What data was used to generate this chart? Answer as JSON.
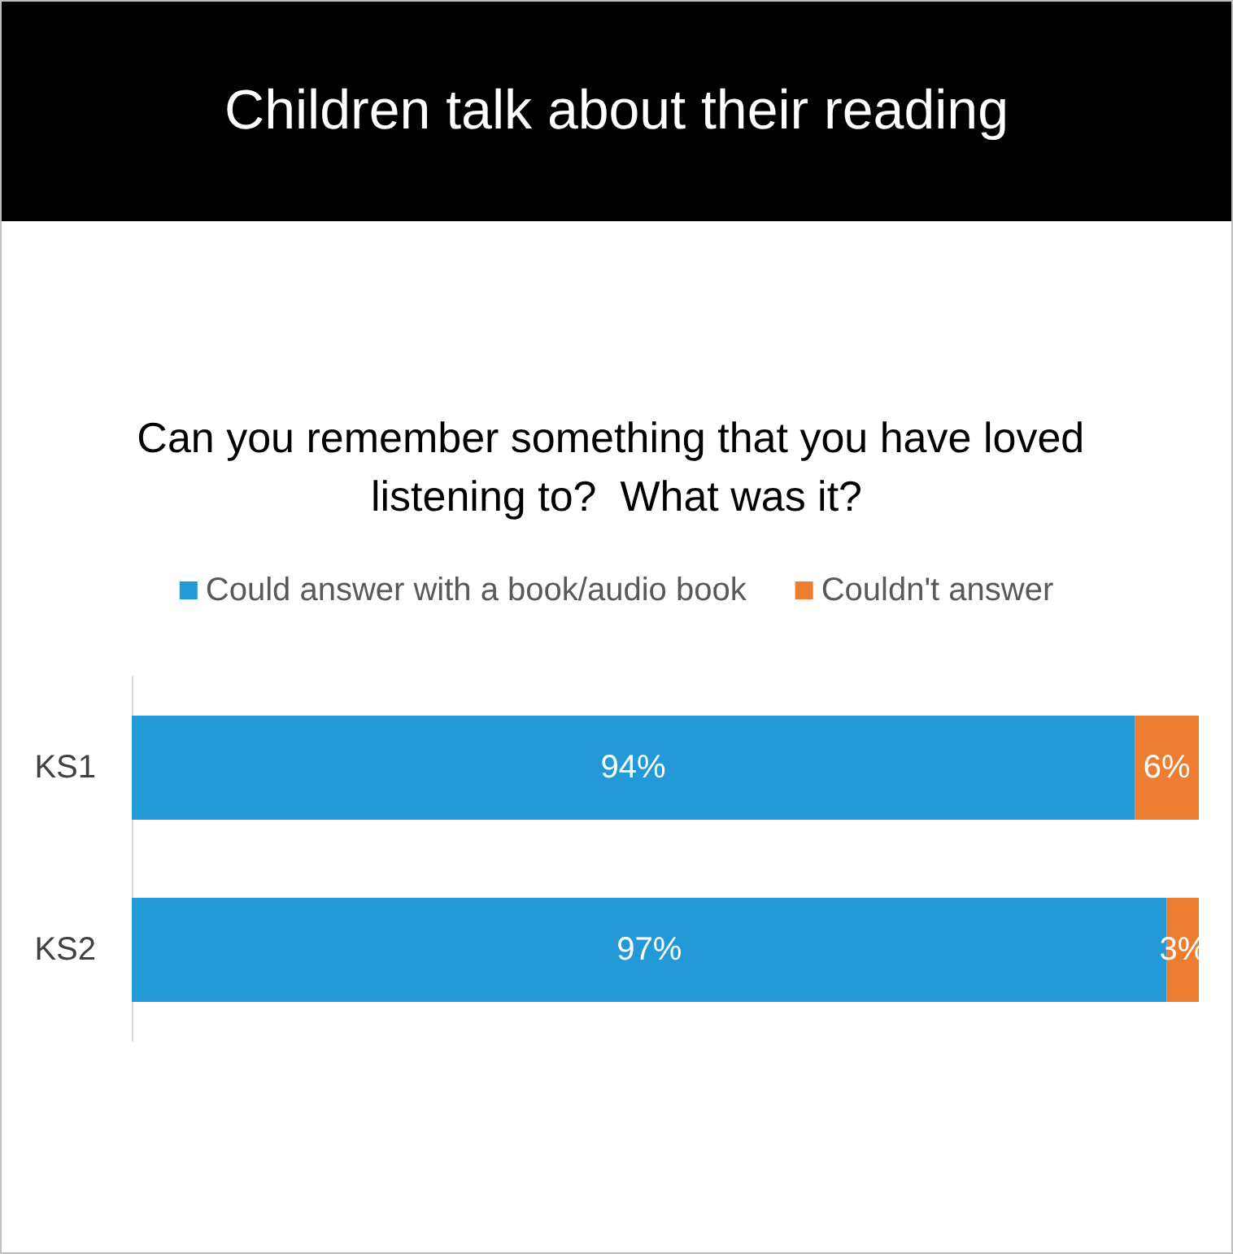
{
  "chart_data": {
    "type": "bar",
    "orientation": "horizontal",
    "stacked": true,
    "title": "Children talk about their reading",
    "subtitle": "Can you remember something that you have loved listening to?  What was it?",
    "categories": [
      "KS1",
      "KS2"
    ],
    "series": [
      {
        "name": "Could answer with a book/audio book",
        "color": "#2399d6",
        "values": [
          94,
          97
        ],
        "value_labels": [
          "94%",
          "97%"
        ]
      },
      {
        "name": "Couldn't answer",
        "color": "#ed7d31",
        "values": [
          6,
          3
        ],
        "value_labels": [
          "6%",
          "3%"
        ]
      }
    ],
    "legend": "top",
    "tick_labels": "y"
  }
}
